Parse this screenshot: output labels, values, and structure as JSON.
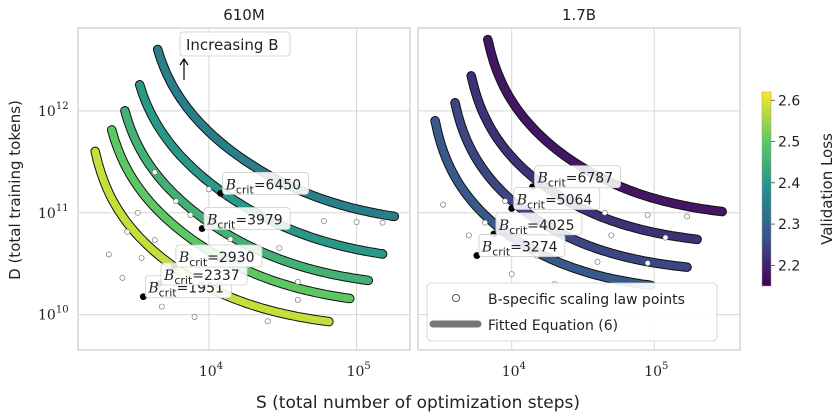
{
  "figure": {
    "xlabel": "S (total number of optimization steps)",
    "ylabel": "D (total training tokens)",
    "colorbar_label": "Validation Loss",
    "colorbar_ticks": [
      "2.6",
      "2.5",
      "2.4",
      "2.3",
      "2.2"
    ],
    "colorbar_colors": [
      "#440154",
      "#3b528b",
      "#21918c",
      "#5ec962",
      "#fde725"
    ],
    "annotation": "Increasing B",
    "legend": [
      "B-specific scaling law points",
      "Fitted Equation (6)"
    ]
  },
  "chart_data": [
    {
      "type": "line",
      "title": "610M",
      "xscale": "log",
      "yscale": "log",
      "xlim": [
        1300,
        230000
      ],
      "ylim": [
        4500000000.0,
        6500000000000.0
      ],
      "xticks": [
        "10^4",
        "10^5"
      ],
      "yticks": [
        "10^10",
        "10^11",
        "10^12"
      ],
      "grid": true,
      "series": [
        {
          "loss": 2.58,
          "crit_label": "B_crit=1951",
          "crit_point": [
            3600,
            15000000000.0
          ],
          "top": [
            1700,
            400000000000.0
          ],
          "asym_S": 1450,
          "asym_D": 7000000000.0,
          "end_S": 65000,
          "points": [
            [
              2100,
              39000000000.0
            ],
            [
              2600,
              23000000000.0
            ],
            [
              4800,
              12000000000.0
            ],
            [
              8000,
              9500000000.0
            ],
            [
              25000,
              8600000000.0
            ]
          ]
        },
        {
          "loss": 2.5,
          "crit_label": "B_crit=2337",
          "crit_point": [
            4600,
            20000000000.0
          ],
          "top": [
            2200,
            650000000000.0
          ],
          "asym_S": 1800,
          "asym_D": 11500000000.0,
          "end_S": 90000,
          "points": [
            [
              2800,
              65000000000.0
            ],
            [
              3500,
              36000000000.0
            ],
            [
              6500,
              22000000000.0
            ],
            [
              13000,
              15000000000.0
            ],
            [
              40000,
              14000000000.0
            ]
          ]
        },
        {
          "loss": 2.45,
          "crit_label": "B_crit=2930",
          "crit_point": [
            5800,
            30000000000.0
          ],
          "top": [
            2700,
            1000000000000.0
          ],
          "asym_S": 2200,
          "asym_D": 17500000000.0,
          "end_S": 120000,
          "points": [
            [
              3300,
              100000000000.0
            ],
            [
              4300,
              54000000000.0
            ],
            [
              7500,
              35000000000.0
            ],
            [
              16000,
              25000000000.0
            ],
            [
              40000,
              21000000000.0
            ]
          ]
        },
        {
          "loss": 2.4,
          "crit_label": "B_crit=3979",
          "crit_point": [
            9000,
            70000000000.0
          ],
          "top": [
            3400,
            1800000000000.0
          ],
          "asym_S": 2700,
          "asym_D": 31000000000.0,
          "end_S": 150000,
          "points": [
            [
              4300,
              250000000000.0
            ],
            [
              6000,
              130000000000.0
            ],
            [
              7500,
              95000000000.0
            ],
            [
              14000,
              55000000000.0
            ],
            [
              30000,
              45000000000.0
            ]
          ]
        },
        {
          "loss": 2.35,
          "crit_label": "B_crit=6450",
          "crit_point": [
            12000,
            155000000000.0
          ],
          "top": [
            4500,
            4000000000000.0
          ],
          "asym_S": 3600,
          "asym_D": 72000000000.0,
          "end_S": 180000,
          "points": [
            [
              10000,
              170000000000.0
            ],
            [
              25000,
              95000000000.0
            ],
            [
              60000,
              83000000000.0
            ],
            [
              100000,
              81000000000.0
            ],
            [
              150000,
              80000000000.0
            ]
          ]
        }
      ]
    },
    {
      "type": "line",
      "title": "1.7B",
      "xscale": "log",
      "yscale": "log",
      "xlim": [
        2200,
        400000
      ],
      "ylim": [
        4500000000.0,
        6500000000000.0
      ],
      "xticks": [
        "10^4",
        "10^5"
      ],
      "yticks": [],
      "grid": true,
      "series": [
        {
          "loss": 2.28,
          "crit_label": "B_crit=3274",
          "crit_point": [
            5700,
            38000000000.0
          ],
          "top": [
            2900,
            800000000000.0
          ],
          "asym_S": 2500,
          "asym_D": 16000000000.0,
          "end_S": 95000,
          "points": [
            [
              3300,
              120000000000.0
            ],
            [
              5000,
              60000000000.0
            ],
            [
              10000,
              25000000000.0
            ],
            [
              20000,
              20000000000.0
            ]
          ]
        },
        {
          "loss": 2.25,
          "crit_label": "B_crit=4025",
          "crit_point": [
            7500,
            62000000000.0
          ],
          "top": [
            4000,
            1200000000000.0
          ],
          "asym_S": 3400,
          "asym_D": 25000000000.0,
          "end_S": 170000,
          "points": [
            [
              6500,
              80000000000.0
            ],
            [
              15000,
              38000000000.0
            ],
            [
              40000,
              33000000000.0
            ],
            [
              90000,
              32000000000.0
            ]
          ]
        },
        {
          "loss": 2.22,
          "crit_label": "B_crit=5064",
          "crit_point": [
            10000,
            110000000000.0
          ],
          "top": [
            5200,
            2200000000000.0
          ],
          "asym_S": 4400,
          "asym_D": 46000000000.0,
          "end_S": 200000,
          "points": [
            [
              9000,
              130000000000.0
            ],
            [
              20000,
              70000000000.0
            ],
            [
              50000,
              60000000000.0
            ],
            [
              120000,
              57000000000.0
            ]
          ]
        },
        {
          "loss": 2.18,
          "crit_label": "B_crit=6787",
          "crit_point": [
            14000,
            180000000000.0
          ],
          "top": [
            6800,
            5000000000000.0
          ],
          "asym_S": 5800,
          "asym_D": 86000000000.0,
          "end_S": 300000,
          "points": [
            [
              20000,
              120000000000.0
            ],
            [
              45000,
              100000000000.0
            ],
            [
              90000,
              95000000000.0
            ],
            [
              170000,
              92000000000.0
            ]
          ]
        }
      ]
    }
  ]
}
